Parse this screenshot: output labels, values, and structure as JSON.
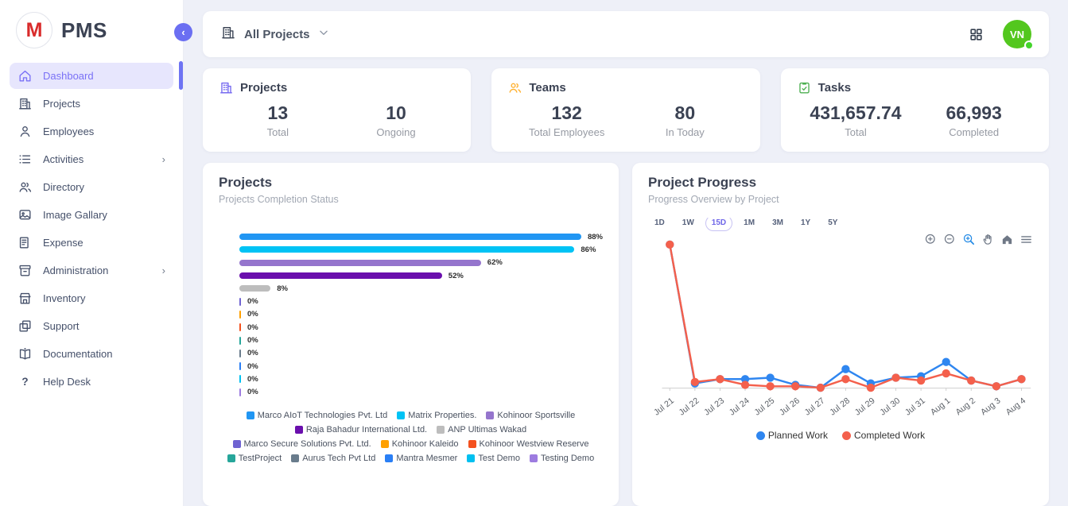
{
  "app": {
    "name": "PMS"
  },
  "sidebar": {
    "items": [
      {
        "label": "Dashboard",
        "icon": "home-icon",
        "active": true,
        "submenu": false
      },
      {
        "label": "Projects",
        "icon": "building-icon",
        "active": false,
        "submenu": false
      },
      {
        "label": "Employees",
        "icon": "person-icon",
        "active": false,
        "submenu": false
      },
      {
        "label": "Activities",
        "icon": "list-icon",
        "active": false,
        "submenu": true
      },
      {
        "label": "Directory",
        "icon": "people-icon",
        "active": false,
        "submenu": false
      },
      {
        "label": "Image Gallary",
        "icon": "image-icon",
        "active": false,
        "submenu": false
      },
      {
        "label": "Expense",
        "icon": "receipt-icon",
        "active": false,
        "submenu": false
      },
      {
        "label": "Administration",
        "icon": "archive-icon",
        "active": false,
        "submenu": true
      },
      {
        "label": "Inventory",
        "icon": "store-icon",
        "active": false,
        "submenu": false
      },
      {
        "label": "Support",
        "icon": "copy-icon",
        "active": false,
        "submenu": false
      },
      {
        "label": "Documentation",
        "icon": "book-icon",
        "active": false,
        "submenu": false
      },
      {
        "label": "Help Desk",
        "icon": "help-icon",
        "active": false,
        "submenu": false
      }
    ]
  },
  "topbar": {
    "project_filter": "All Projects",
    "icons": [
      "grid-icon"
    ],
    "avatar": {
      "initials": "VN",
      "color": "#53c71e",
      "online": true
    }
  },
  "stats": [
    {
      "title": "Projects",
      "icon": "building-icon",
      "icon_color": "#7367f0",
      "metrics": [
        {
          "value": "13",
          "label": "Total"
        },
        {
          "value": "10",
          "label": "Ongoing"
        }
      ]
    },
    {
      "title": "Teams",
      "icon": "people-icon",
      "icon_color": "#ffb02e",
      "metrics": [
        {
          "value": "132",
          "label": "Total Employees"
        },
        {
          "value": "80",
          "label": "In Today"
        }
      ]
    },
    {
      "title": "Tasks",
      "icon": "clipboard-icon",
      "icon_color": "#4caf50",
      "metrics": [
        {
          "value": "431,657.74",
          "label": "Total"
        },
        {
          "value": "66,993",
          "label": "Completed"
        }
      ]
    }
  ],
  "panels": {
    "projects": {
      "title": "Projects",
      "subtitle": "Projects Completion Status"
    },
    "progress": {
      "title": "Project Progress",
      "subtitle": "Progress Overview by Project",
      "ranges": [
        "1D",
        "1W",
        "15D",
        "1M",
        "3M",
        "1Y",
        "5Y"
      ],
      "active_range": "15D",
      "toolbar": [
        "zoom-in-icon",
        "zoom-out-icon",
        "zoom-select-icon",
        "pan-icon",
        "home-icon",
        "menu-icon"
      ]
    }
  },
  "chart_data": [
    {
      "type": "bar",
      "orientation": "horizontal",
      "title": "Projects",
      "subtitle": "Projects Completion Status",
      "unit": "%",
      "xlim": [
        0,
        100
      ],
      "value_labels": true,
      "legend_position": "bottom",
      "series": [
        {
          "name": "Marco AIoT Technologies Pvt. Ltd",
          "value": 88,
          "color": "#2196f3"
        },
        {
          "name": "Matrix Properties.",
          "value": 86,
          "color": "#00c3f5"
        },
        {
          "name": "Kohinoor Sportsville",
          "value": 62,
          "color": "#9575cd"
        },
        {
          "name": "Raja Bahadur International Ltd.",
          "value": 52,
          "color": "#6a0fad"
        },
        {
          "name": "ANP Ultimas Wakad",
          "value": 8,
          "color": "#bdbdbd"
        },
        {
          "name": "Marco Secure Solutions Pvt. Ltd.",
          "value": 0,
          "color": "#6f63d2"
        },
        {
          "name": "Kohinoor Kaleido",
          "value": 0,
          "color": "#ffa000"
        },
        {
          "name": "Kohinoor Westview Reserve",
          "value": 0,
          "color": "#f4511e"
        },
        {
          "name": "TestProject",
          "value": 0,
          "color": "#26a69a"
        },
        {
          "name": "Aurus Tech Pvt Ltd",
          "value": 0,
          "color": "#697c8c"
        },
        {
          "name": "Mantra Mesmer",
          "value": 0,
          "color": "#2a7ff5"
        },
        {
          "name": "Test Demo",
          "value": 0,
          "color": "#00c0f0"
        },
        {
          "name": "Testing Demo",
          "value": 0,
          "color": "#9d7ce0"
        }
      ]
    },
    {
      "type": "line",
      "title": "Project Progress",
      "subtitle": "Progress Overview by Project",
      "x": [
        "Jul 21",
        "Jul 22",
        "Jul 23",
        "Jul 24",
        "Jul 25",
        "Jul 26",
        "Jul 27",
        "Jul 28",
        "Jul 29",
        "Jul 30",
        "Jul 31",
        "Aug 1",
        "Aug 2",
        "Aug 3",
        "Aug 4"
      ],
      "ylim": [
        0,
        100
      ],
      "y_axis_labels": false,
      "grid": false,
      "legend_position": "bottom",
      "series": [
        {
          "name": "Planned Work",
          "color": "#2f86f0",
          "values": [
            100,
            3,
            6,
            6,
            7,
            2,
            0,
            13,
            3,
            7,
            8,
            18,
            5,
            1,
            6
          ]
        },
        {
          "name": "Completed Work",
          "color": "#f4604c",
          "values": [
            100,
            4,
            6,
            2,
            1,
            1,
            0,
            6,
            0,
            7,
            5,
            10,
            5,
            1,
            6
          ]
        }
      ]
    }
  ]
}
